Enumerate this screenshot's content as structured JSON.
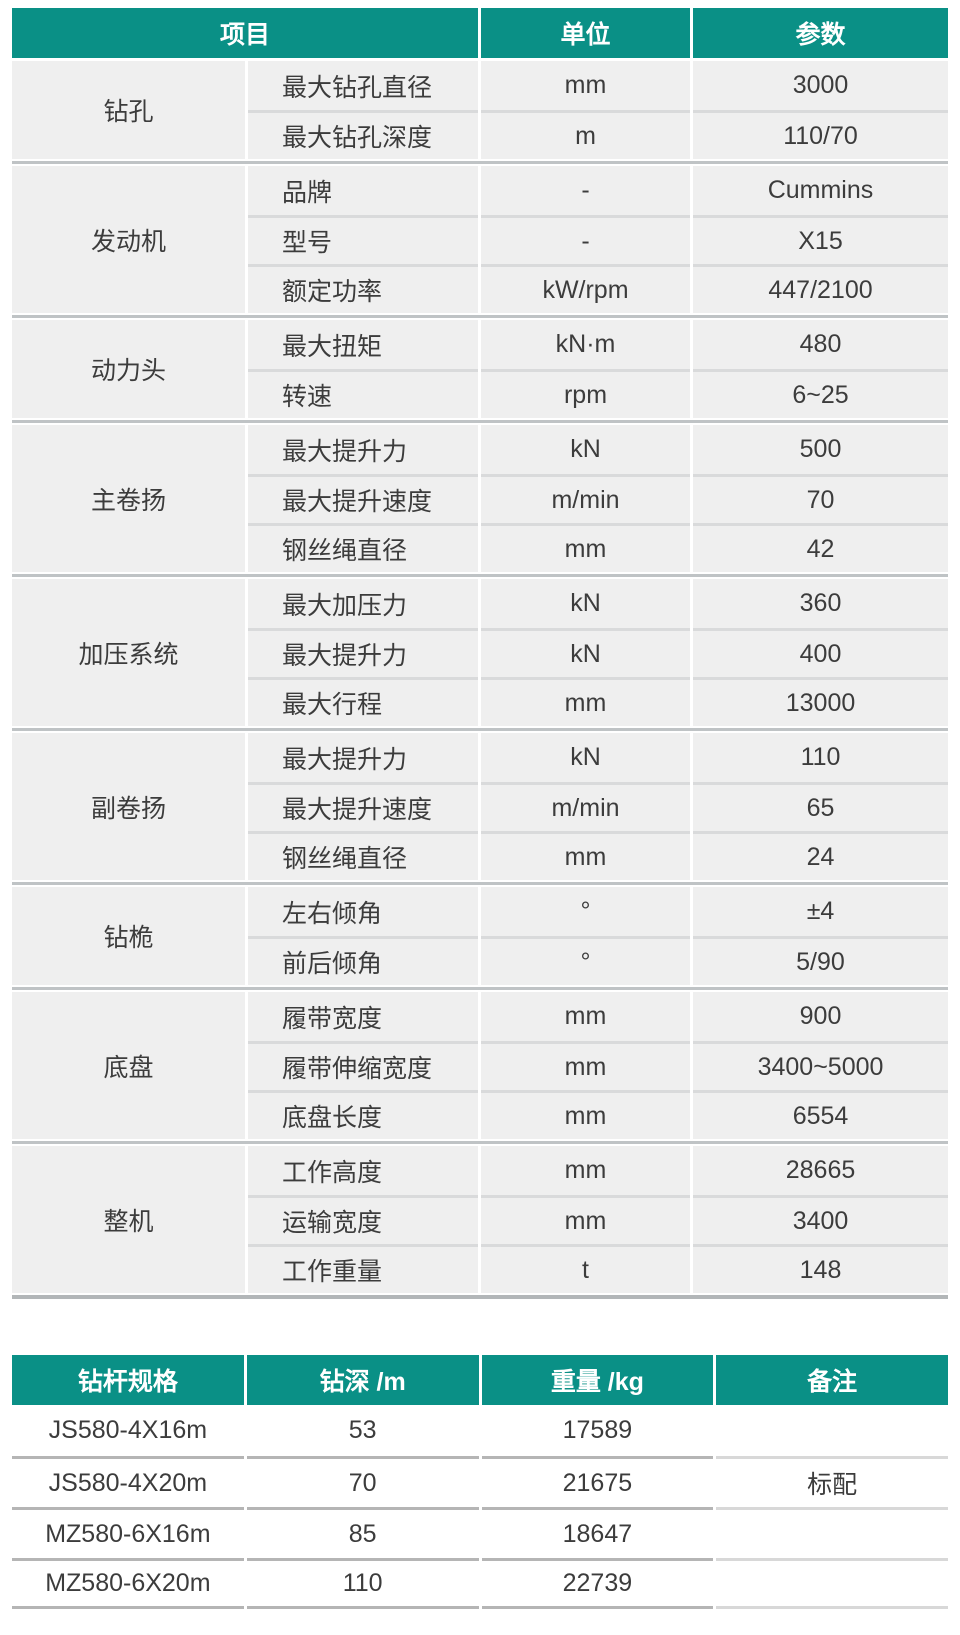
{
  "accent_color": "#0a9086",
  "row_bg_color": "#efefef",
  "spec_table": {
    "headers": {
      "item": "项目",
      "unit": "单位",
      "param": "参数"
    },
    "groups": [
      {
        "category": "钻孔",
        "rows": [
          {
            "item": "最大钻孔直径",
            "unit": "mm",
            "param": "3000"
          },
          {
            "item": "最大钻孔深度",
            "unit": "m",
            "param": "110/70"
          }
        ]
      },
      {
        "category": "发动机",
        "rows": [
          {
            "item": "品牌",
            "unit": "-",
            "param": "Cummins"
          },
          {
            "item": "型号",
            "unit": "-",
            "param": "X15"
          },
          {
            "item": "额定功率",
            "unit": "kW/rpm",
            "param": "447/2100"
          }
        ]
      },
      {
        "category": "动力头",
        "rows": [
          {
            "item": "最大扭矩",
            "unit": "kN·m",
            "param": "480"
          },
          {
            "item": "转速",
            "unit": "rpm",
            "param": "6~25"
          }
        ]
      },
      {
        "category": "主卷扬",
        "rows": [
          {
            "item": "最大提升力",
            "unit": "kN",
            "param": "500"
          },
          {
            "item": "最大提升速度",
            "unit": "m/min",
            "param": "70"
          },
          {
            "item": "钢丝绳直径",
            "unit": "mm",
            "param": "42"
          }
        ]
      },
      {
        "category": "加压系统",
        "rows": [
          {
            "item": "最大加压力",
            "unit": "kN",
            "param": "360"
          },
          {
            "item": "最大提升力",
            "unit": "kN",
            "param": "400"
          },
          {
            "item": "最大行程",
            "unit": "mm",
            "param": "13000"
          }
        ]
      },
      {
        "category": "副卷扬",
        "rows": [
          {
            "item": "最大提升力",
            "unit": "kN",
            "param": "110"
          },
          {
            "item": "最大提升速度",
            "unit": "m/min",
            "param": "65"
          },
          {
            "item": "钢丝绳直径",
            "unit": "mm",
            "param": "24"
          }
        ]
      },
      {
        "category": "钻桅",
        "rows": [
          {
            "item": "左右倾角",
            "unit": "°",
            "param": "±4"
          },
          {
            "item": "前后倾角",
            "unit": "°",
            "param": "5/90"
          }
        ]
      },
      {
        "category": "底盘",
        "rows": [
          {
            "item": "履带宽度",
            "unit": "mm",
            "param": "900"
          },
          {
            "item": "履带伸缩宽度",
            "unit": "mm",
            "param": "3400~5000"
          },
          {
            "item": "底盘长度",
            "unit": "mm",
            "param": "6554"
          }
        ]
      },
      {
        "category": "整机",
        "rows": [
          {
            "item": "工作高度",
            "unit": "mm",
            "param": "28665"
          },
          {
            "item": "运输宽度",
            "unit": "mm",
            "param": "3400"
          },
          {
            "item": "工作重量",
            "unit": "t",
            "param": "148"
          }
        ]
      }
    ]
  },
  "pipe_table": {
    "headers": [
      "钻杆规格",
      "钻深 /m",
      "重量 /kg",
      "备注"
    ],
    "rows": [
      {
        "spec": "JS580-4X16m",
        "depth": "53",
        "weight": "17589",
        "note": ""
      },
      {
        "spec": "JS580-4X20m",
        "depth": "70",
        "weight": "21675",
        "note": "标配"
      },
      {
        "spec": "MZ580-6X16m",
        "depth": "85",
        "weight": "18647",
        "note": ""
      },
      {
        "spec": "MZ580-6X20m",
        "depth": "110",
        "weight": "22739",
        "note": ""
      }
    ]
  }
}
